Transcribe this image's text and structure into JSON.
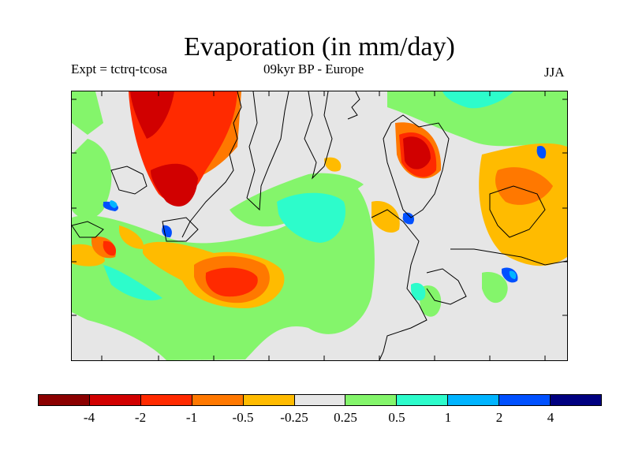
{
  "title": "Evaporation (in mm/day)",
  "subtitle_left": "Expt = tctrq-tcosa",
  "subtitle_center": "09kyr BP - Europe",
  "subtitle_right": "JJA",
  "colorbar": {
    "colors": [
      "#8b0000",
      "#d10000",
      "#ff2a00",
      "#ff7800",
      "#ffbb00",
      "#e6e6e6",
      "#84f56b",
      "#2dfccb",
      "#00b4ff",
      "#0050ff",
      "#000080"
    ],
    "labels": [
      "-4",
      "-2",
      "-1",
      "-0.5",
      "-0.25",
      "0.25",
      "0.5",
      "1",
      "2",
      "4"
    ]
  }
}
